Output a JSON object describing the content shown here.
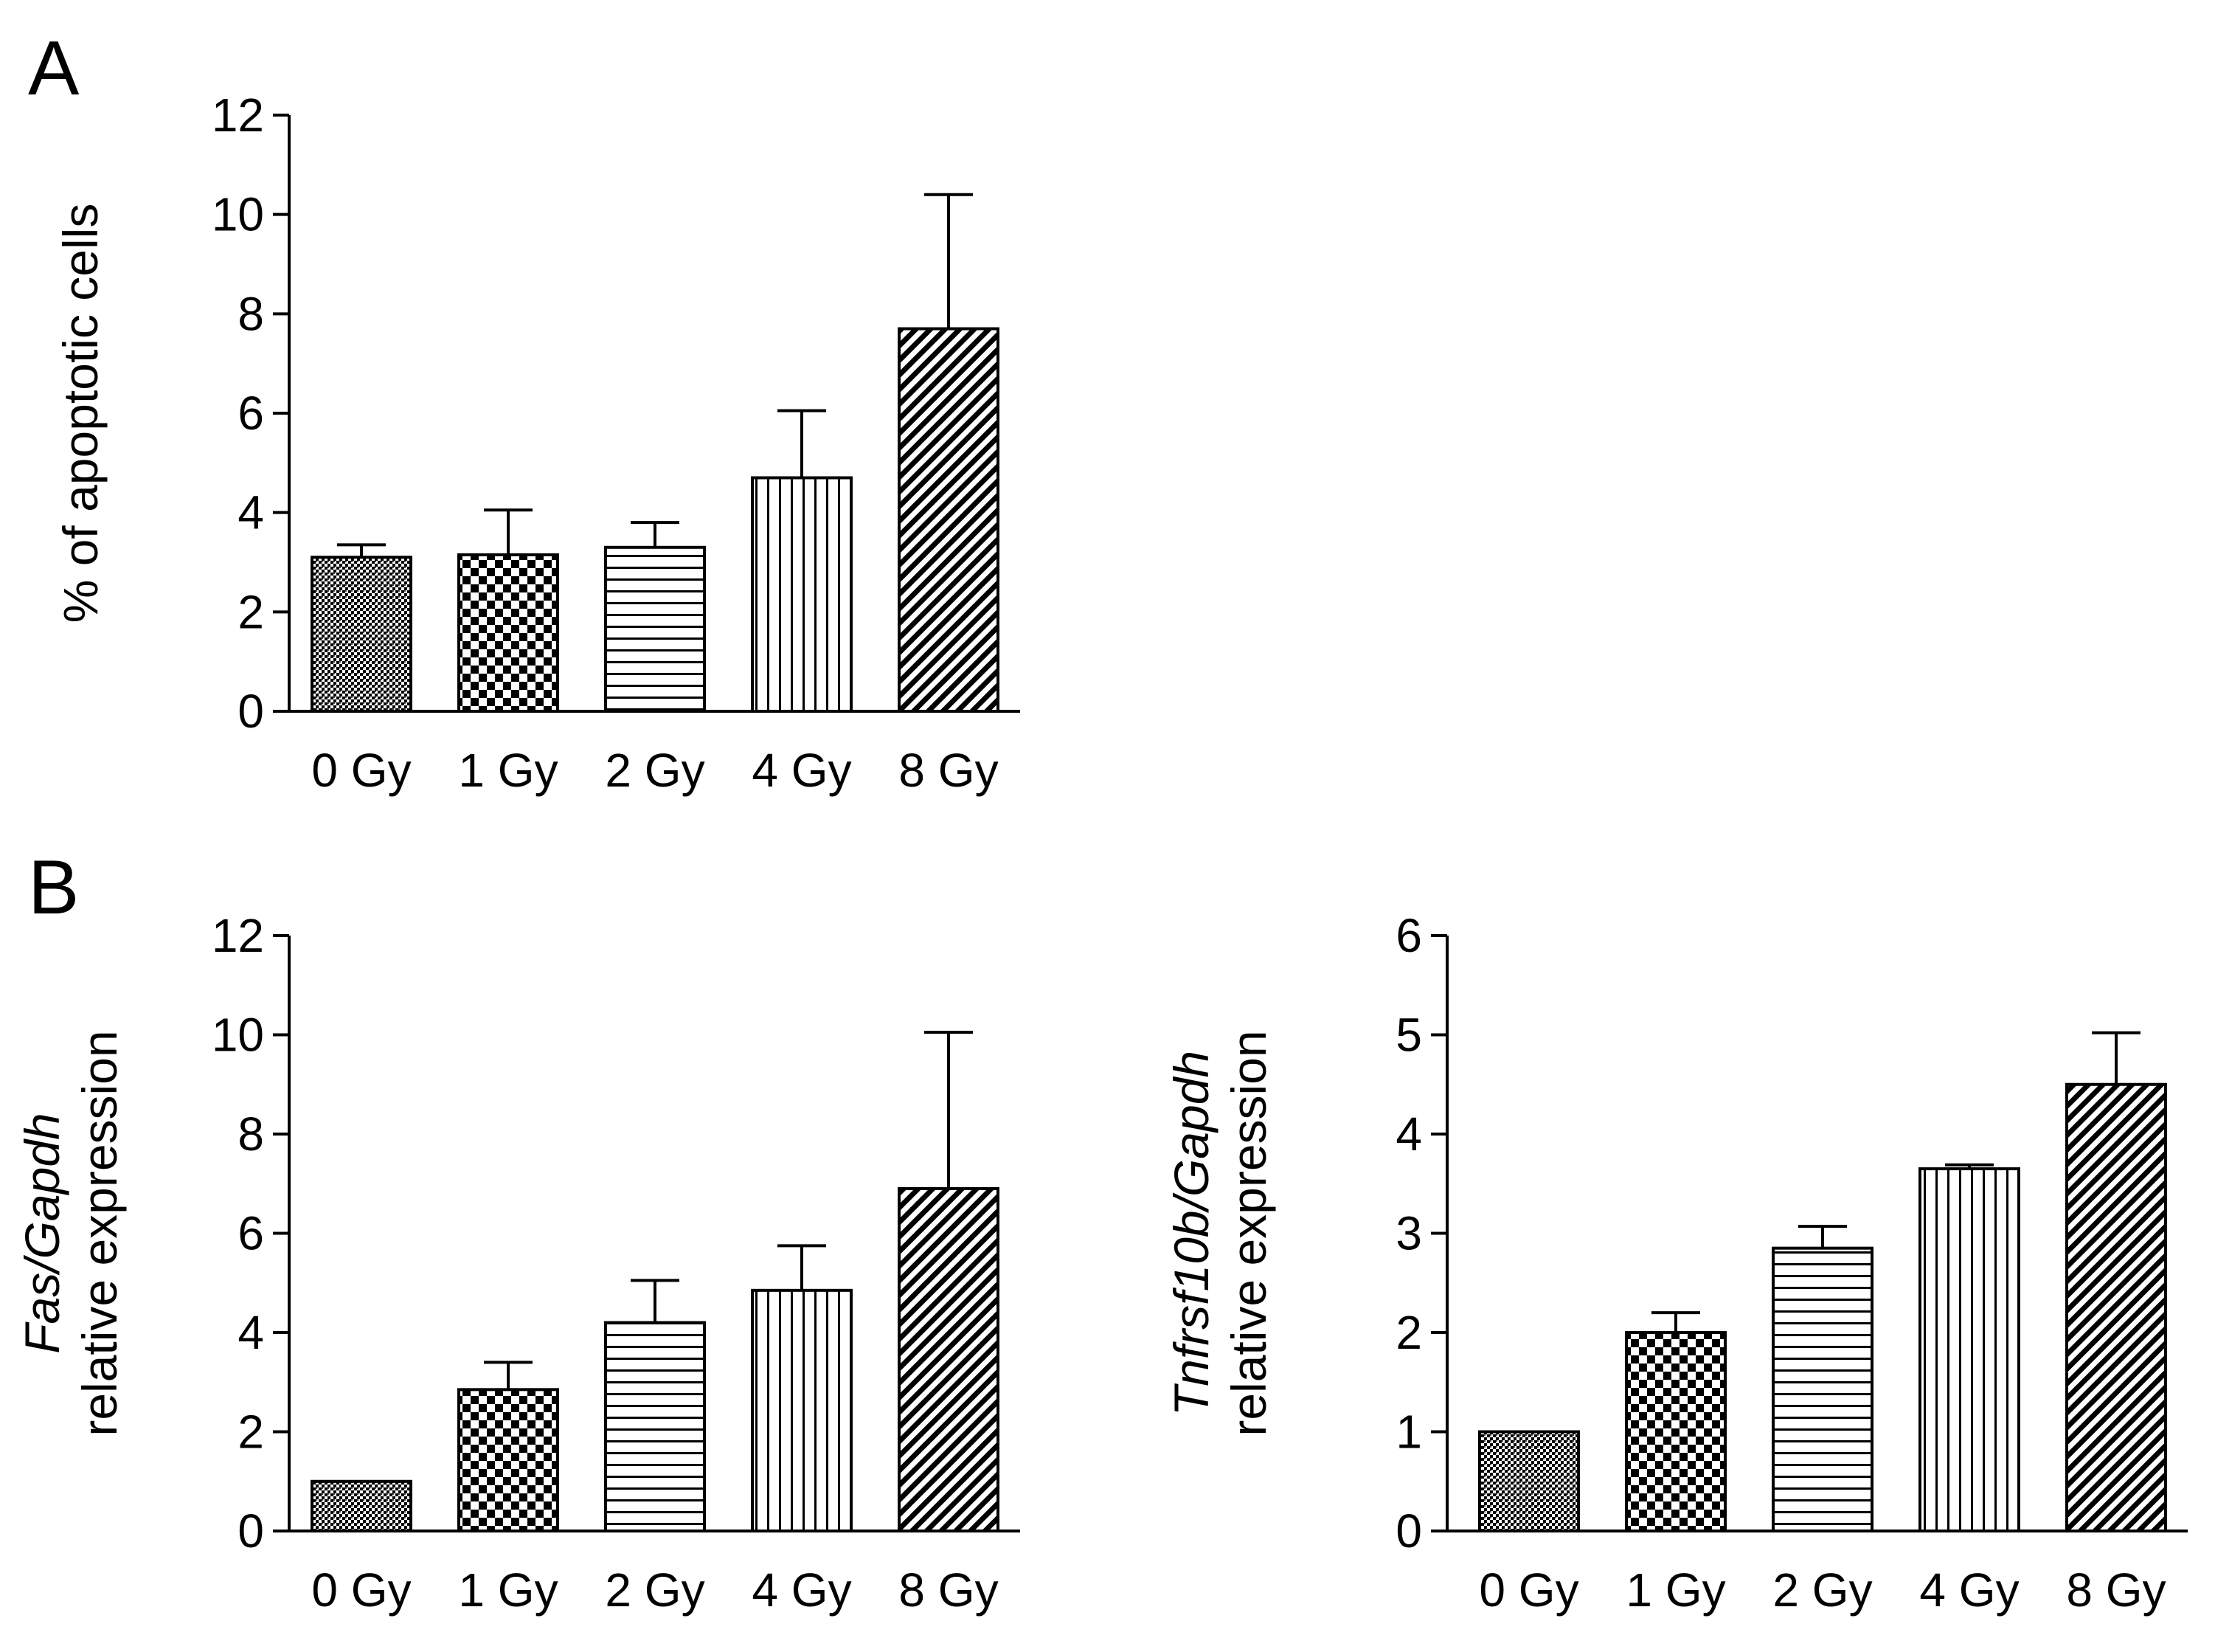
{
  "panel_labels": {
    "A": "A",
    "B": "B"
  },
  "patterns": [
    "dots",
    "checker",
    "hlines",
    "vlines",
    "diag"
  ],
  "chart_data": [
    {
      "id": "chartA",
      "type": "bar",
      "panel": "A",
      "title": "",
      "xlabel": "",
      "ylabel": "% of apoptotic cells",
      "categories": [
        "0 Gy",
        "1 Gy",
        "2 Gy",
        "4 Gy",
        "8 Gy"
      ],
      "values": [
        3.1,
        3.15,
        3.3,
        4.7,
        7.7
      ],
      "errors": [
        0.25,
        0.9,
        0.5,
        1.35,
        2.7
      ],
      "ylim": [
        0,
        12
      ],
      "yticks": [
        0,
        2,
        4,
        6,
        8,
        10,
        12
      ],
      "grid": false
    },
    {
      "id": "chartB1",
      "type": "bar",
      "panel": "B",
      "title": "",
      "xlabel": "",
      "ylabel_italic": "Fas/Gapdh",
      "ylabel": "relative expression",
      "categories": [
        "0 Gy",
        "1 Gy",
        "2 Gy",
        "4 Gy",
        "8 Gy"
      ],
      "values": [
        1.0,
        2.85,
        4.2,
        4.85,
        6.9
      ],
      "errors": [
        0,
        0.55,
        0.85,
        0.9,
        3.15
      ],
      "ylim": [
        0,
        12
      ],
      "yticks": [
        0,
        2,
        4,
        6,
        8,
        10,
        12
      ],
      "grid": false
    },
    {
      "id": "chartB2",
      "type": "bar",
      "panel": "B",
      "title": "",
      "xlabel": "",
      "ylabel_italic": "Tnfrsf10b/Gapdh",
      "ylabel": "relative expression",
      "categories": [
        "0 Gy",
        "1 Gy",
        "2 Gy",
        "4 Gy",
        "8 Gy"
      ],
      "values": [
        1.0,
        2.0,
        2.85,
        3.65,
        4.5
      ],
      "errors": [
        0,
        0.2,
        0.22,
        0.04,
        0.52
      ],
      "ylim": [
        0,
        6
      ],
      "yticks": [
        0,
        1,
        2,
        3,
        4,
        5,
        6
      ],
      "grid": false
    }
  ]
}
